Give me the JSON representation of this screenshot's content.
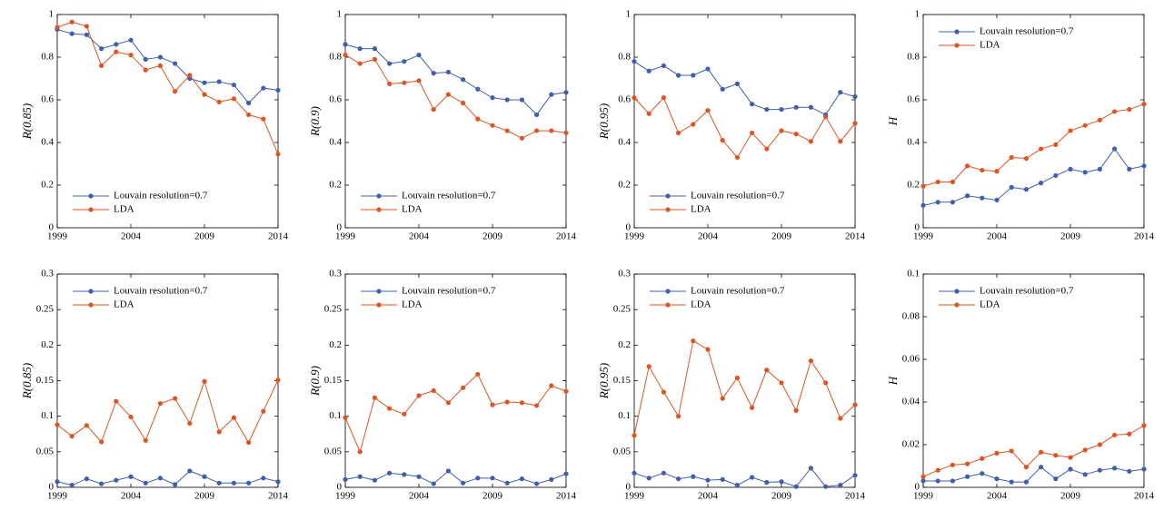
{
  "chart_data": [
    {
      "type": "line",
      "ylabel": "R(0.85)",
      "legend": "lower left",
      "x": [
        1999,
        2000,
        2001,
        2002,
        2003,
        2004,
        2005,
        2006,
        2007,
        2008,
        2009,
        2010,
        2011,
        2012,
        2013,
        2014
      ],
      "xlim": [
        1999,
        2014
      ],
      "xticks": [
        1999,
        2004,
        2009,
        2014
      ],
      "ylim": [
        0,
        1
      ],
      "yticks": [
        0,
        0.2,
        0.4,
        0.6,
        0.8,
        1
      ],
      "series": [
        {
          "name": "Louvain resolution=0.7",
          "color": "#3f5fae",
          "values": [
            0.93,
            0.91,
            0.905,
            0.84,
            0.86,
            0.88,
            0.79,
            0.8,
            0.77,
            0.7,
            0.68,
            0.685,
            0.67,
            0.585,
            0.655,
            0.645
          ]
        },
        {
          "name": "LDA",
          "color": "#dd5522",
          "values": [
            0.94,
            0.965,
            0.945,
            0.76,
            0.825,
            0.81,
            0.74,
            0.76,
            0.64,
            0.715,
            0.625,
            0.59,
            0.605,
            0.53,
            0.51,
            0.345
          ]
        }
      ]
    },
    {
      "type": "line",
      "ylabel": "R(0.9)",
      "legend": "lower left",
      "x": [
        1999,
        2000,
        2001,
        2002,
        2003,
        2004,
        2005,
        2006,
        2007,
        2008,
        2009,
        2010,
        2011,
        2012,
        2013,
        2014
      ],
      "xlim": [
        1999,
        2014
      ],
      "xticks": [
        1999,
        2004,
        2009,
        2014
      ],
      "ylim": [
        0,
        1
      ],
      "yticks": [
        0,
        0.2,
        0.4,
        0.6,
        0.8,
        1
      ],
      "series": [
        {
          "name": "Louvain resolution=0.7",
          "color": "#3f5fae",
          "values": [
            0.86,
            0.84,
            0.84,
            0.77,
            0.78,
            0.81,
            0.725,
            0.73,
            0.695,
            0.65,
            0.61,
            0.6,
            0.6,
            0.53,
            0.625,
            0.635
          ]
        },
        {
          "name": "LDA",
          "color": "#dd5522",
          "values": [
            0.81,
            0.77,
            0.79,
            0.675,
            0.68,
            0.69,
            0.555,
            0.625,
            0.585,
            0.51,
            0.48,
            0.455,
            0.42,
            0.455,
            0.455,
            0.445
          ]
        }
      ]
    },
    {
      "type": "line",
      "ylabel": "R(0.95)",
      "legend": "lower left",
      "x": [
        1999,
        2000,
        2001,
        2002,
        2003,
        2004,
        2005,
        2006,
        2007,
        2008,
        2009,
        2010,
        2011,
        2012,
        2013,
        2014
      ],
      "xlim": [
        1999,
        2014
      ],
      "xticks": [
        1999,
        2004,
        2009,
        2014
      ],
      "ylim": [
        0,
        1
      ],
      "yticks": [
        0,
        0.2,
        0.4,
        0.6,
        0.8,
        1
      ],
      "series": [
        {
          "name": "Louvain resolution=0.7",
          "color": "#3f5fae",
          "values": [
            0.78,
            0.735,
            0.76,
            0.715,
            0.715,
            0.745,
            0.65,
            0.675,
            0.58,
            0.555,
            0.555,
            0.565,
            0.565,
            0.53,
            0.635,
            0.615
          ]
        },
        {
          "name": "LDA",
          "color": "#dd5522",
          "values": [
            0.61,
            0.535,
            0.61,
            0.445,
            0.485,
            0.55,
            0.41,
            0.33,
            0.445,
            0.37,
            0.455,
            0.44,
            0.405,
            0.52,
            0.405,
            0.49
          ]
        }
      ]
    },
    {
      "type": "line",
      "ylabel": "H",
      "legend": "upper left",
      "x": [
        1999,
        2000,
        2001,
        2002,
        2003,
        2004,
        2005,
        2006,
        2007,
        2008,
        2009,
        2010,
        2011,
        2012,
        2013,
        2014
      ],
      "xlim": [
        1999,
        2014
      ],
      "xticks": [
        1999,
        2004,
        2009,
        2014
      ],
      "ylim": [
        0,
        1
      ],
      "yticks": [
        0,
        0.2,
        0.4,
        0.6,
        0.8,
        1
      ],
      "series": [
        {
          "name": "Louvain resolution=0.7",
          "color": "#3f5fae",
          "values": [
            0.105,
            0.12,
            0.12,
            0.15,
            0.14,
            0.13,
            0.19,
            0.18,
            0.21,
            0.245,
            0.275,
            0.26,
            0.275,
            0.37,
            0.275,
            0.29
          ]
        },
        {
          "name": "LDA",
          "color": "#dd5522",
          "values": [
            0.195,
            0.215,
            0.215,
            0.29,
            0.27,
            0.265,
            0.33,
            0.325,
            0.37,
            0.39,
            0.455,
            0.48,
            0.505,
            0.545,
            0.555,
            0.58
          ]
        }
      ]
    },
    {
      "type": "line",
      "ylabel": "R(0.85)",
      "legend": "upper left",
      "x": [
        1999,
        2000,
        2001,
        2002,
        2003,
        2004,
        2005,
        2006,
        2007,
        2008,
        2009,
        2010,
        2011,
        2012,
        2013,
        2014
      ],
      "xlim": [
        1999,
        2014
      ],
      "xticks": [
        1999,
        2004,
        2009,
        2014
      ],
      "ylim": [
        0,
        0.3
      ],
      "yticks": [
        0,
        0.05,
        0.1,
        0.15,
        0.2,
        0.25,
        0.3
      ],
      "series": [
        {
          "name": "Louvain resolution=0.7",
          "color": "#3f5fae",
          "values": [
            0.008,
            0.003,
            0.012,
            0.005,
            0.01,
            0.015,
            0.006,
            0.013,
            0.004,
            0.023,
            0.015,
            0.006,
            0.006,
            0.006,
            0.013,
            0.008
          ]
        },
        {
          "name": "LDA",
          "color": "#dd5522",
          "values": [
            0.088,
            0.072,
            0.087,
            0.064,
            0.121,
            0.099,
            0.066,
            0.118,
            0.125,
            0.09,
            0.149,
            0.078,
            0.098,
            0.063,
            0.107,
            0.151
          ]
        }
      ]
    },
    {
      "type": "line",
      "ylabel": "R(0.9)",
      "legend": "upper left",
      "x": [
        1999,
        2000,
        2001,
        2002,
        2003,
        2004,
        2005,
        2006,
        2007,
        2008,
        2009,
        2010,
        2011,
        2012,
        2013,
        2014
      ],
      "xlim": [
        1999,
        2014
      ],
      "xticks": [
        1999,
        2004,
        2009,
        2014
      ],
      "ylim": [
        0,
        0.3
      ],
      "yticks": [
        0,
        0.05,
        0.1,
        0.15,
        0.2,
        0.25,
        0.3
      ],
      "series": [
        {
          "name": "Louvain resolution=0.7",
          "color": "#3f5fae",
          "values": [
            0.011,
            0.015,
            0.01,
            0.02,
            0.018,
            0.015,
            0.005,
            0.023,
            0.006,
            0.013,
            0.013,
            0.006,
            0.012,
            0.005,
            0.011,
            0.019
          ]
        },
        {
          "name": "LDA",
          "color": "#dd5522",
          "values": [
            0.098,
            0.05,
            0.126,
            0.111,
            0.103,
            0.129,
            0.136,
            0.119,
            0.14,
            0.159,
            0.116,
            0.12,
            0.119,
            0.115,
            0.143,
            0.135
          ]
        }
      ]
    },
    {
      "type": "line",
      "ylabel": "R(0.95)",
      "legend": "upper left",
      "x": [
        1999,
        2000,
        2001,
        2002,
        2003,
        2004,
        2005,
        2006,
        2007,
        2008,
        2009,
        2010,
        2011,
        2012,
        2013,
        2014
      ],
      "xlim": [
        1999,
        2014
      ],
      "xticks": [
        1999,
        2004,
        2009,
        2014
      ],
      "ylim": [
        0,
        0.3
      ],
      "yticks": [
        0,
        0.05,
        0.1,
        0.15,
        0.2,
        0.25,
        0.3
      ],
      "series": [
        {
          "name": "Louvain resolution=0.7",
          "color": "#3f5fae",
          "values": [
            0.02,
            0.013,
            0.02,
            0.012,
            0.015,
            0.01,
            0.011,
            0.003,
            0.014,
            0.007,
            0.008,
            0.001,
            0.027,
            0.001,
            0.003,
            0.017
          ]
        },
        {
          "name": "LDA",
          "color": "#dd5522",
          "values": [
            0.073,
            0.17,
            0.134,
            0.1,
            0.206,
            0.194,
            0.125,
            0.154,
            0.112,
            0.165,
            0.147,
            0.108,
            0.178,
            0.147,
            0.097,
            0.116
          ]
        }
      ]
    },
    {
      "type": "line",
      "ylabel": "H",
      "legend": "upper left",
      "x": [
        1999,
        2000,
        2001,
        2002,
        2003,
        2004,
        2005,
        2006,
        2007,
        2008,
        2009,
        2010,
        2011,
        2012,
        2013,
        2014
      ],
      "xlim": [
        1999,
        2014
      ],
      "xticks": [
        1999,
        2004,
        2009,
        2014
      ],
      "ylim": [
        0,
        0.1
      ],
      "yticks": [
        0,
        0.02,
        0.04,
        0.06,
        0.08,
        0.1
      ],
      "series": [
        {
          "name": "Louvain resolution=0.7",
          "color": "#3f5fae",
          "values": [
            0.003,
            0.003,
            0.003,
            0.005,
            0.0065,
            0.004,
            0.0025,
            0.0025,
            0.0095,
            0.004,
            0.0085,
            0.006,
            0.008,
            0.009,
            0.0075,
            0.0085
          ]
        },
        {
          "name": "LDA",
          "color": "#dd5522",
          "values": [
            0.005,
            0.008,
            0.0105,
            0.011,
            0.0135,
            0.016,
            0.017,
            0.0095,
            0.0165,
            0.015,
            0.014,
            0.0175,
            0.02,
            0.0245,
            0.025,
            0.029
          ]
        }
      ]
    }
  ]
}
